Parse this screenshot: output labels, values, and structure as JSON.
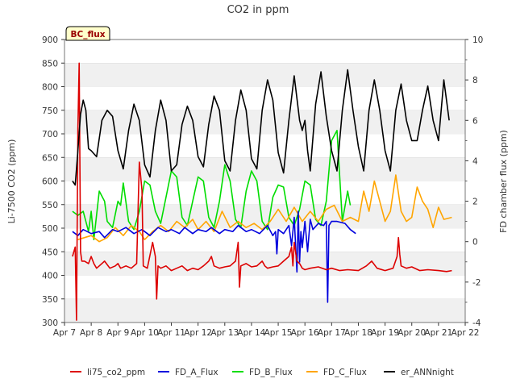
{
  "chart_data": {
    "type": "line",
    "title": "CO2 in ppm",
    "ylabel": "Li-7500 CO2 (ppm)",
    "y2label": "FD chamber flux (ppm)",
    "badge": "BC_flux",
    "xlim": [
      7,
      22
    ],
    "ylim": [
      300,
      900
    ],
    "y2lim": [
      -4,
      10
    ],
    "x_ticks": [
      7,
      8,
      9,
      10,
      11,
      12,
      13,
      14,
      15,
      16,
      17,
      18,
      19,
      20,
      21,
      22
    ],
    "x_tick_labels": [
      "Apr 7",
      "Apr 8",
      "Apr 9",
      "Apr 10",
      "Apr 11",
      "Apr 12",
      "Apr 13",
      "Apr 14",
      "Apr 15",
      "Apr 16",
      "Apr 17",
      "Apr 18",
      "Apr 19",
      "Apr 20",
      "Apr 21",
      "Apr 22"
    ],
    "y_ticks": [
      300,
      350,
      400,
      450,
      500,
      550,
      600,
      650,
      700,
      750,
      800,
      850,
      900
    ],
    "y2_ticks": [
      -4,
      -2,
      0,
      2,
      4,
      6,
      8,
      10
    ],
    "grid": "horizontal bands",
    "legend_position": "bottom",
    "series": [
      {
        "name": "li75_co2_ppm",
        "axis": "left",
        "color": "#dd0000",
        "x": [
          7.3,
          7.4,
          7.45,
          7.5,
          7.55,
          7.6,
          7.65,
          7.75,
          7.9,
          8.0,
          8.1,
          8.2,
          8.3,
          8.5,
          8.7,
          8.9,
          9.0,
          9.1,
          9.3,
          9.5,
          9.6,
          9.7,
          9.8,
          9.9,
          9.95,
          10.1,
          10.3,
          10.4,
          10.45,
          10.5,
          10.6,
          10.8,
          11.0,
          11.2,
          11.4,
          11.6,
          11.8,
          12.0,
          12.2,
          12.4,
          12.5,
          12.6,
          12.8,
          13.0,
          13.2,
          13.4,
          13.5,
          13.55,
          13.6,
          13.8,
          14.0,
          14.2,
          14.4,
          14.5,
          14.6,
          14.8,
          15.0,
          15.2,
          15.4,
          15.5,
          15.55,
          15.6,
          15.7,
          15.8,
          15.9,
          16.0,
          16.2,
          16.5,
          16.8,
          17.0,
          17.3,
          17.6,
          18.0,
          18.3,
          18.5,
          18.7,
          19.0,
          19.3,
          19.45,
          19.5,
          19.55,
          19.6,
          19.8,
          20.0,
          20.3,
          20.6,
          21.0,
          21.3,
          21.5
        ],
        "values": [
          440,
          460,
          305,
          710,
          850,
          450,
          430,
          430,
          425,
          440,
          425,
          415,
          420,
          430,
          415,
          420,
          425,
          415,
          420,
          415,
          420,
          425,
          640,
          580,
          420,
          415,
          470,
          440,
          350,
          420,
          415,
          420,
          410,
          415,
          420,
          410,
          415,
          412,
          420,
          430,
          440,
          420,
          415,
          418,
          420,
          430,
          470,
          375,
          420,
          425,
          418,
          420,
          430,
          420,
          415,
          418,
          420,
          430,
          440,
          460,
          420,
          470,
          430,
          425,
          415,
          412,
          415,
          418,
          412,
          415,
          410,
          412,
          410,
          420,
          430,
          415,
          410,
          415,
          440,
          480,
          445,
          420,
          415,
          418,
          410,
          412,
          410,
          408,
          410
        ]
      },
      {
        "name": "FD_A_Flux",
        "axis": "right",
        "color": "#0000dd",
        "x": [
          7.3,
          7.5,
          7.7,
          8.0,
          8.3,
          8.5,
          8.8,
          9.0,
          9.3,
          9.6,
          9.9,
          10.2,
          10.5,
          10.8,
          11.0,
          11.3,
          11.5,
          11.8,
          12.0,
          12.3,
          12.5,
          12.8,
          13.0,
          13.3,
          13.5,
          13.8,
          14.0,
          14.3,
          14.6,
          14.8,
          14.9,
          14.95,
          15.0,
          15.2,
          15.4,
          15.5,
          15.6,
          15.7,
          15.75,
          15.8,
          15.85,
          15.9,
          16.0,
          16.1,
          16.2,
          16.3,
          16.5,
          16.7,
          16.8,
          16.85,
          16.9,
          17.0,
          17.2,
          17.5,
          17.7,
          17.9
        ],
        "values": [
          0.5,
          0.3,
          0.6,
          0.4,
          0.5,
          0.2,
          0.6,
          0.5,
          0.7,
          0.4,
          0.6,
          0.3,
          0.7,
          0.5,
          0.6,
          0.4,
          0.7,
          0.4,
          0.6,
          0.5,
          0.7,
          0.4,
          0.6,
          0.5,
          0.8,
          0.5,
          0.6,
          0.4,
          0.8,
          0.3,
          0.5,
          -0.6,
          0.6,
          0.4,
          0.8,
          -0.2,
          1.2,
          -1.5,
          1.5,
          -1.0,
          0.5,
          -0.3,
          1.0,
          -0.5,
          1.1,
          0.6,
          0.9,
          0.8,
          1.0,
          -3.0,
          0.8,
          1.0,
          1.0,
          0.9,
          0.6,
          0.4
        ]
      },
      {
        "name": "FD_B_Flux",
        "axis": "right",
        "color": "#00dd00",
        "x": [
          7.3,
          7.5,
          7.7,
          7.9,
          8.0,
          8.1,
          8.3,
          8.5,
          8.6,
          8.8,
          9.0,
          9.1,
          9.2,
          9.4,
          9.6,
          9.8,
          10.0,
          10.2,
          10.4,
          10.6,
          10.8,
          11.0,
          11.2,
          11.4,
          11.6,
          11.8,
          12.0,
          12.2,
          12.4,
          12.6,
          12.8,
          13.0,
          13.2,
          13.4,
          13.6,
          13.8,
          14.0,
          14.2,
          14.4,
          14.6,
          14.8,
          15.0,
          15.2,
          15.4,
          15.6,
          15.8,
          16.0,
          16.2,
          16.4,
          16.6,
          16.8,
          17.0,
          17.2,
          17.4,
          17.6,
          17.7
        ],
        "values": [
          1.5,
          1.3,
          1.5,
          0.5,
          1.5,
          0.1,
          2.5,
          2.0,
          1.0,
          0.7,
          2.0,
          1.8,
          2.9,
          1.0,
          0.6,
          1.5,
          3.0,
          2.8,
          1.5,
          0.9,
          2.2,
          3.5,
          3.2,
          1.2,
          0.8,
          2.0,
          3.2,
          3.0,
          1.2,
          0.7,
          2.0,
          3.8,
          3.0,
          1.1,
          0.7,
          2.5,
          3.5,
          3.0,
          1.0,
          0.6,
          2.2,
          2.8,
          2.7,
          1.2,
          0.8,
          1.6,
          3.0,
          2.8,
          1.1,
          0.8,
          2.0,
          5.0,
          5.5,
          1.0,
          2.5,
          1.8
        ]
      },
      {
        "name": "FD_C_Flux",
        "axis": "right",
        "color": "#ffa500",
        "x": [
          7.5,
          8.0,
          8.3,
          8.6,
          8.9,
          9.2,
          9.5,
          9.8,
          10.0,
          10.3,
          10.6,
          10.9,
          11.2,
          11.5,
          11.8,
          12.0,
          12.3,
          12.6,
          12.9,
          13.2,
          13.5,
          13.8,
          14.1,
          14.4,
          14.7,
          15.0,
          15.3,
          15.6,
          15.9,
          16.2,
          16.5,
          16.8,
          17.1,
          17.4,
          17.7,
          18.0,
          18.2,
          18.4,
          18.6,
          18.8,
          19.0,
          19.2,
          19.4,
          19.6,
          19.8,
          20.0,
          20.2,
          20.4,
          20.6,
          20.8,
          21.0,
          21.2,
          21.5
        ],
        "values": [
          0.1,
          0.3,
          0.0,
          0.2,
          0.7,
          0.3,
          0.8,
          0.5,
          0.1,
          0.5,
          0.8,
          0.5,
          1.0,
          0.7,
          1.1,
          0.6,
          1.0,
          0.5,
          1.5,
          0.7,
          1.0,
          0.7,
          0.9,
          0.6,
          1.0,
          1.6,
          1.0,
          1.7,
          1.0,
          1.5,
          1.0,
          1.6,
          1.8,
          1.0,
          1.2,
          1.0,
          2.5,
          1.5,
          3.0,
          2.0,
          1.0,
          1.5,
          3.3,
          1.5,
          1.0,
          1.2,
          2.7,
          2.0,
          1.6,
          0.7,
          1.7,
          1.1,
          1.2
        ]
      },
      {
        "name": "er_ANNnight",
        "axis": "right",
        "color": "#000000",
        "x": [
          7.3,
          7.4,
          7.5,
          7.6,
          7.7,
          7.8,
          7.9,
          8.0,
          8.2,
          8.4,
          8.6,
          8.8,
          9.0,
          9.2,
          9.4,
          9.6,
          9.8,
          10.0,
          10.2,
          10.4,
          10.6,
          10.8,
          11.0,
          11.2,
          11.4,
          11.6,
          11.8,
          12.0,
          12.2,
          12.4,
          12.6,
          12.8,
          13.0,
          13.2,
          13.4,
          13.6,
          13.8,
          14.0,
          14.2,
          14.4,
          14.6,
          14.8,
          15.0,
          15.2,
          15.4,
          15.6,
          15.8,
          15.9,
          16.0,
          16.1,
          16.2,
          16.4,
          16.6,
          16.8,
          17.0,
          17.2,
          17.4,
          17.6,
          17.8,
          18.0,
          18.2,
          18.4,
          18.6,
          18.8,
          19.0,
          19.2,
          19.4,
          19.6,
          19.8,
          20.0,
          20.2,
          20.4,
          20.6,
          20.8,
          21.0,
          21.2,
          21.4
        ],
        "values": [
          3.0,
          2.8,
          4.5,
          6.3,
          7.0,
          6.5,
          4.6,
          4.5,
          4.2,
          6.0,
          6.5,
          6.2,
          4.5,
          3.6,
          5.5,
          6.8,
          6.0,
          3.8,
          3.2,
          5.5,
          7.0,
          6.0,
          3.5,
          3.8,
          5.8,
          6.7,
          6.0,
          4.2,
          3.7,
          5.8,
          7.2,
          6.5,
          4.0,
          3.5,
          6.0,
          7.5,
          6.5,
          4.1,
          3.6,
          6.5,
          8.0,
          7.0,
          4.4,
          3.4,
          6.0,
          8.2,
          6.0,
          5.5,
          6.0,
          4.5,
          3.5,
          6.8,
          8.4,
          6.2,
          4.5,
          3.5,
          6.5,
          8.5,
          6.5,
          4.7,
          3.5,
          6.5,
          8.0,
          6.5,
          4.5,
          3.5,
          6.5,
          7.8,
          6.0,
          5.0,
          5.0,
          6.5,
          7.7,
          6.0,
          5.0,
          8.0,
          6.0
        ]
      }
    ]
  }
}
